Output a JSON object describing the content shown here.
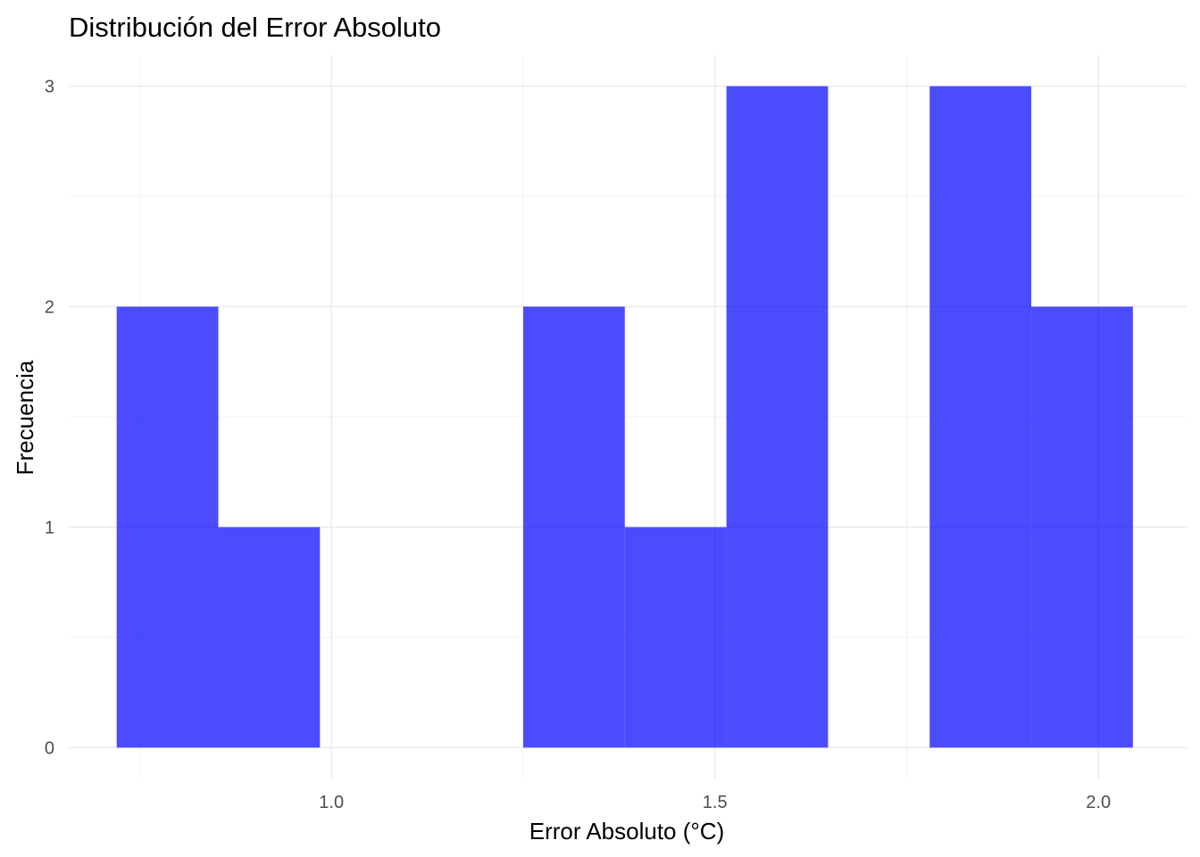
{
  "chart_data": {
    "type": "bar",
    "subtype": "histogram",
    "title": "Distribución del Error Absoluto",
    "xlabel": "Error Absoluto (°C)",
    "ylabel": "Frecuencia",
    "xlim": [
      0.6575,
      2.115
    ],
    "ylim": [
      -0.14,
      3.14
    ],
    "x_ticks": [
      1.0,
      1.5,
      2.0
    ],
    "x_tick_labels": [
      "1.0",
      "1.5",
      "2.0"
    ],
    "y_ticks": [
      0,
      1,
      2,
      3
    ],
    "y_tick_labels": [
      "0",
      "1",
      "2",
      "3"
    ],
    "bins": [
      {
        "x0": 0.72,
        "x1": 0.8525,
        "count": 2
      },
      {
        "x0": 0.8525,
        "x1": 0.985,
        "count": 1
      },
      {
        "x0": 0.985,
        "x1": 1.1175,
        "count": 0
      },
      {
        "x0": 1.1175,
        "x1": 1.25,
        "count": 0
      },
      {
        "x0": 1.25,
        "x1": 1.3825,
        "count": 2
      },
      {
        "x0": 1.3825,
        "x1": 1.515,
        "count": 1
      },
      {
        "x0": 1.515,
        "x1": 1.6475,
        "count": 3
      },
      {
        "x0": 1.6475,
        "x1": 1.78,
        "count": 0
      },
      {
        "x0": 1.78,
        "x1": 1.9125,
        "count": 3
      },
      {
        "x0": 1.9125,
        "x1": 2.045,
        "count": 2
      }
    ],
    "bar_color": "#0000ff",
    "bar_opacity": 0.7,
    "grid": true,
    "legend": "none"
  }
}
